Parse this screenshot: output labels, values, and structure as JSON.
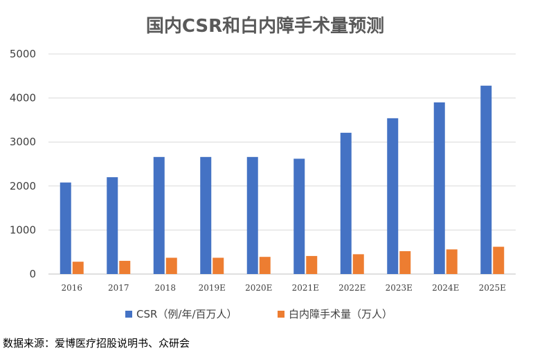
{
  "chart_data": {
    "type": "bar",
    "title": "国内CSR和白内障手术量预测",
    "categories": [
      "2016",
      "2017",
      "2018",
      "2019E",
      "2020E",
      "2021E",
      "2022E",
      "2023E",
      "2024E",
      "2025E"
    ],
    "series": [
      {
        "name": "CSR（例/年/百万人）",
        "color": "#4472C4",
        "values": [
          2080,
          2200,
          2660,
          2660,
          2660,
          2620,
          3210,
          3540,
          3900,
          4280
        ]
      },
      {
        "name": "白内障手术量（万人）",
        "color": "#ED7D31",
        "values": [
          280,
          300,
          370,
          370,
          390,
          410,
          450,
          520,
          560,
          620
        ]
      }
    ],
    "ylim": [
      0,
      5000
    ],
    "yticks": [
      0,
      1000,
      2000,
      3000,
      4000,
      5000
    ],
    "grid": true,
    "legend": "bottom"
  },
  "source": "数据来源：爱博医疗招股说明书、众研会"
}
